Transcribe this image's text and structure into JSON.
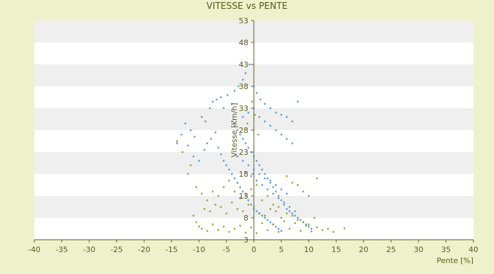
{
  "chart_data": {
    "type": "scatter",
    "title": "VITESSE vs PENTE",
    "xlabel": "Pente [%]",
    "ylabel": "Vitesse [km/h]",
    "xlim": [
      -40,
      40
    ],
    "ylim": [
      3,
      53
    ],
    "xticks": [
      "-40",
      "-35",
      "-30",
      "-25",
      "-20",
      "-15",
      "-10",
      "-5",
      "0",
      "5",
      "10",
      "15",
      "20",
      "25",
      "30",
      "35",
      "40"
    ],
    "yticks": [
      "3",
      "8",
      "13",
      "18",
      "23",
      "28",
      "33",
      "38",
      "43",
      "48",
      "53"
    ],
    "grid": "horizontal bands",
    "colors": {
      "background": "#eef2cc",
      "plot_band_light": "#ffffff",
      "plot_band_dark": "#efefef",
      "axis": "#5a5a1a"
    },
    "series": [
      {
        "color": "#3f8fd6",
        "points": [
          [
            -12.5,
            29.5
          ],
          [
            -13.2,
            27
          ],
          [
            -11.5,
            28
          ],
          [
            -10.8,
            26.5
          ],
          [
            -14.0,
            25
          ],
          [
            -12.0,
            24.5
          ],
          [
            -9.5,
            31
          ],
          [
            -8.8,
            30
          ],
          [
            -8.0,
            33
          ],
          [
            -7.5,
            34.5
          ],
          [
            -6.8,
            35
          ],
          [
            -6.0,
            35.5
          ],
          [
            -5.5,
            33
          ],
          [
            -4.8,
            36
          ],
          [
            -4.0,
            34
          ],
          [
            -3.5,
            37
          ],
          [
            -2.8,
            38
          ],
          [
            -2.0,
            39.5
          ],
          [
            -1.5,
            41
          ],
          [
            -0.8,
            43
          ],
          [
            0.0,
            38
          ],
          [
            0.5,
            36.5
          ],
          [
            1.2,
            35
          ],
          [
            2.0,
            34
          ],
          [
            3.0,
            33
          ],
          [
            4.0,
            32
          ],
          [
            5.0,
            31.5
          ],
          [
            6.0,
            31
          ],
          [
            7.0,
            30
          ],
          [
            8.0,
            34.5
          ],
          [
            -11.0,
            22
          ],
          [
            -10.0,
            21
          ],
          [
            -9.0,
            23.5
          ],
          [
            -8.5,
            25
          ],
          [
            -7.8,
            26
          ],
          [
            -7.0,
            27.5
          ],
          [
            -6.5,
            24
          ],
          [
            -6.0,
            22.5
          ],
          [
            -5.5,
            21
          ],
          [
            -5.0,
            20
          ],
          [
            -4.5,
            19
          ],
          [
            -4.0,
            18
          ],
          [
            -3.5,
            17
          ],
          [
            -3.0,
            16
          ],
          [
            -2.5,
            15
          ],
          [
            -2.0,
            14
          ],
          [
            -1.5,
            13
          ],
          [
            -1.0,
            12
          ],
          [
            -0.5,
            11
          ],
          [
            0.0,
            10
          ],
          [
            0.5,
            9.5
          ],
          [
            1.0,
            9
          ],
          [
            1.5,
            8.5
          ],
          [
            2.0,
            8
          ],
          [
            2.5,
            7.5
          ],
          [
            3.0,
            7
          ],
          [
            3.5,
            6.5
          ],
          [
            4.0,
            6
          ],
          [
            4.5,
            5.5
          ],
          [
            5.0,
            5
          ],
          [
            -4.0,
            30
          ],
          [
            -3.5,
            29
          ],
          [
            -3.0,
            28
          ],
          [
            -2.5,
            27
          ],
          [
            -2.0,
            26
          ],
          [
            -1.5,
            25
          ],
          [
            -1.0,
            24
          ],
          [
            -0.5,
            23
          ],
          [
            0.0,
            22
          ],
          [
            0.5,
            21
          ],
          [
            1.0,
            20
          ],
          [
            1.5,
            19
          ],
          [
            2.0,
            18
          ],
          [
            2.5,
            17
          ],
          [
            3.0,
            16
          ],
          [
            3.5,
            15
          ],
          [
            4.0,
            14
          ],
          [
            4.5,
            13
          ],
          [
            5.0,
            12
          ],
          [
            5.5,
            11
          ],
          [
            6.0,
            10
          ],
          [
            6.5,
            9.5
          ],
          [
            7.0,
            9
          ],
          [
            7.5,
            8.5
          ],
          [
            8.0,
            8
          ],
          [
            8.5,
            7.5
          ],
          [
            9.0,
            7
          ],
          [
            9.5,
            6.5
          ],
          [
            10.0,
            6
          ],
          [
            10.5,
            5.5
          ],
          [
            -2.0,
            31
          ],
          [
            -1.0,
            32
          ],
          [
            0.0,
            33
          ],
          [
            1.0,
            31
          ],
          [
            2.0,
            30
          ],
          [
            3.0,
            29
          ],
          [
            4.0,
            28
          ],
          [
            5.0,
            27
          ],
          [
            6.0,
            26
          ],
          [
            7.0,
            25
          ],
          [
            -3.0,
            22
          ],
          [
            -2.0,
            21
          ],
          [
            -1.0,
            20
          ],
          [
            0.0,
            19
          ],
          [
            1.0,
            18
          ],
          [
            2.0,
            17
          ],
          [
            3.0,
            16.5
          ],
          [
            4.0,
            15.5
          ],
          [
            5.0,
            14.5
          ],
          [
            6.0,
            13.5
          ],
          [
            -1.5,
            18.5
          ],
          [
            -0.5,
            17.5
          ],
          [
            0.5,
            16.5
          ],
          [
            1.5,
            15.5
          ],
          [
            2.5,
            14.5
          ],
          [
            3.5,
            13.5
          ],
          [
            4.5,
            12.5
          ],
          [
            5.5,
            11.5
          ],
          [
            6.5,
            10.5
          ],
          [
            7.5,
            9.5
          ]
        ]
      },
      {
        "color": "#8a9a14",
        "points": [
          [
            -11.0,
            8.5
          ],
          [
            -10.5,
            7
          ],
          [
            -10.0,
            6
          ],
          [
            -9.5,
            5.5
          ],
          [
            -8.5,
            5
          ],
          [
            -7.5,
            6.5
          ],
          [
            -6.5,
            5.2
          ],
          [
            -5.5,
            6
          ],
          [
            -4.5,
            4.8
          ],
          [
            -3.5,
            5.5
          ],
          [
            -2.5,
            6.2
          ],
          [
            -1.5,
            4.6
          ],
          [
            -0.5,
            5.8
          ],
          [
            0.5,
            4.5
          ],
          [
            1.5,
            6.8
          ],
          [
            2.5,
            5.2
          ],
          [
            3.5,
            6.5
          ],
          [
            4.5,
            4.8
          ],
          [
            5.5,
            7.2
          ],
          [
            6.5,
            5.5
          ],
          [
            7.5,
            6.8
          ],
          [
            8.5,
            5
          ],
          [
            9.5,
            6.2
          ],
          [
            10.5,
            4.9
          ],
          [
            11.5,
            5.8
          ],
          [
            12.5,
            5.2
          ],
          [
            13.5,
            5.5
          ],
          [
            16.5,
            5.6
          ],
          [
            14.5,
            4.8
          ],
          [
            11.0,
            8
          ],
          [
            -9.0,
            10
          ],
          [
            -8.0,
            9.5
          ],
          [
            -7.0,
            11
          ],
          [
            -6.0,
            10.5
          ],
          [
            -5.0,
            9
          ],
          [
            -4.0,
            11.5
          ],
          [
            -3.0,
            10
          ],
          [
            -2.0,
            9.5
          ],
          [
            -1.0,
            11
          ],
          [
            0.0,
            10.5
          ],
          [
            1.0,
            9
          ],
          [
            2.0,
            8.5
          ],
          [
            3.0,
            10
          ],
          [
            4.0,
            9.5
          ],
          [
            5.0,
            8
          ],
          [
            6.0,
            9
          ],
          [
            7.0,
            8.5
          ],
          [
            8.0,
            7.5
          ],
          [
            9.0,
            7
          ],
          [
            10.0,
            6.5
          ],
          [
            -12.0,
            18
          ],
          [
            -11.5,
            20
          ],
          [
            -13.0,
            23
          ],
          [
            -14.0,
            25.5
          ],
          [
            -10.5,
            15
          ],
          [
            -9.5,
            13.5
          ],
          [
            -8.5,
            12
          ],
          [
            -7.5,
            14
          ],
          [
            -6.5,
            13
          ],
          [
            -5.5,
            15
          ],
          [
            -4.5,
            16.5
          ],
          [
            -3.5,
            14
          ],
          [
            -2.5,
            12.5
          ],
          [
            -1.5,
            13.5
          ],
          [
            -0.5,
            14.5
          ],
          [
            0.5,
            15.5
          ],
          [
            1.5,
            12
          ],
          [
            2.5,
            13
          ],
          [
            3.5,
            11
          ],
          [
            4.5,
            10.5
          ],
          [
            8.0,
            15.5
          ],
          [
            9.0,
            14
          ],
          [
            10.0,
            13
          ],
          [
            11.5,
            17
          ],
          [
            7.0,
            16
          ],
          [
            6.0,
            17.5
          ],
          [
            -0.3,
            34.5
          ],
          [
            0.8,
            27
          ],
          [
            -1.2,
            29.5
          ],
          [
            0.2,
            31.5
          ]
        ]
      }
    ]
  }
}
